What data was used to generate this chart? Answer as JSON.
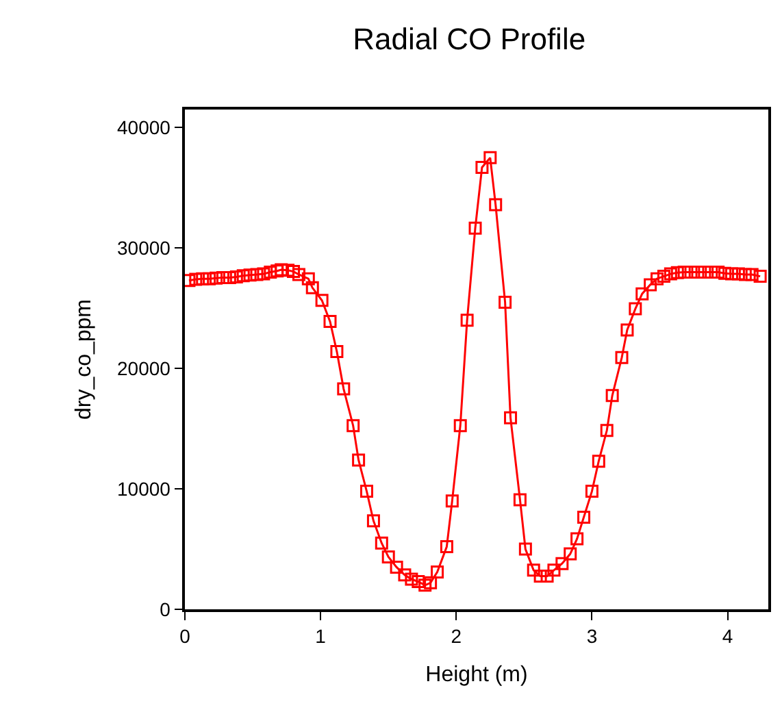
{
  "chart_data": {
    "type": "line",
    "title": "Radial CO Profile",
    "xlabel": "Height (m)",
    "ylabel": "dry_co_ppm",
    "xlim": [
      0,
      4.3
    ],
    "ylim": [
      0,
      41500
    ],
    "xticks": [
      0,
      1,
      2,
      3,
      4
    ],
    "yticks": [
      0,
      10000,
      20000,
      30000,
      40000
    ],
    "legend": false,
    "marker": "square",
    "line_style": "solid",
    "series": [
      {
        "color": "#ff0000",
        "x": [
          0.03,
          0.08,
          0.13,
          0.18,
          0.23,
          0.28,
          0.33,
          0.38,
          0.43,
          0.48,
          0.53,
          0.58,
          0.63,
          0.68,
          0.71,
          0.76,
          0.8,
          0.84,
          0.91,
          0.94,
          1.01,
          1.07,
          1.12,
          1.17,
          1.24,
          1.28,
          1.34,
          1.39,
          1.45,
          1.5,
          1.56,
          1.62,
          1.67,
          1.72,
          1.77,
          1.81,
          1.86,
          1.93,
          1.97,
          2.03,
          2.08,
          2.14,
          2.19,
          2.25,
          2.29,
          2.36,
          2.4,
          2.47,
          2.51,
          2.57,
          2.62,
          2.67,
          2.72,
          2.78,
          2.84,
          2.89,
          2.94,
          3.0,
          3.05,
          3.11,
          3.15,
          3.22,
          3.26,
          3.32,
          3.37,
          3.43,
          3.48,
          3.53,
          3.58,
          3.63,
          3.68,
          3.73,
          3.78,
          3.83,
          3.88,
          3.93,
          3.98,
          4.03,
          4.08,
          4.13,
          4.18,
          4.24
        ],
        "values": [
          27300,
          27400,
          27450,
          27450,
          27500,
          27550,
          27550,
          27600,
          27700,
          27750,
          27800,
          27850,
          28000,
          28100,
          28200,
          28150,
          28050,
          27800,
          27450,
          26700,
          25650,
          23900,
          21400,
          18300,
          15250,
          12400,
          9800,
          7350,
          5500,
          4350,
          3500,
          2850,
          2500,
          2300,
          2000,
          2200,
          3100,
          5200,
          9000,
          15250,
          24000,
          31650,
          36700,
          37500,
          33600,
          25500,
          15900,
          9100,
          5000,
          3250,
          2750,
          2750,
          3250,
          3800,
          4600,
          5850,
          7650,
          9800,
          12300,
          14850,
          17750,
          20900,
          23200,
          24950,
          26200,
          26950,
          27450,
          27650,
          27850,
          27950,
          28000,
          28000,
          28000,
          28000,
          28000,
          28000,
          27900,
          27850,
          27850,
          27800,
          27800,
          27650
        ]
      }
    ]
  }
}
